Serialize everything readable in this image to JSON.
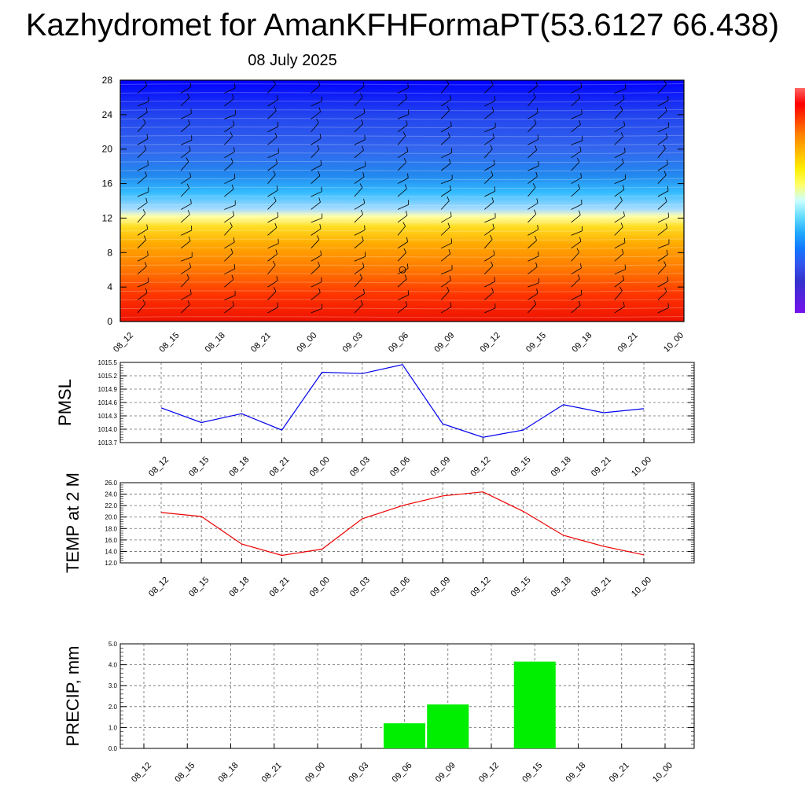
{
  "page": {
    "title": "Kazhydromet for AmanKFHFormaPT(53.6127 66.438)",
    "subtitle": "08 July 2025"
  },
  "colors": {
    "pmsl_line": "#0000ee",
    "temp_line": "#ee0000",
    "precip_bar": "#00ee00",
    "barb": "#000000"
  },
  "chart_data": [
    {
      "type": "heatmap",
      "title": "",
      "categories": [
        "08_12",
        "08_15",
        "08_18",
        "08_21",
        "09_00",
        "09_03",
        "09_06",
        "09_09",
        "09_12",
        "09_15",
        "09_18",
        "09_21",
        "10_00"
      ],
      "xlabel": "",
      "ylabel": "",
      "ylim": [
        0,
        28
      ],
      "yticks": [
        "0",
        "4",
        "8",
        "12",
        "16",
        "20",
        "24",
        "28"
      ],
      "ytick_values": [
        0,
        4,
        8,
        12,
        16,
        20,
        24,
        28
      ],
      "color_bands": [
        {
          "y": 0,
          "color": "#ee1100"
        },
        {
          "y": 3,
          "color": "#ff3300"
        },
        {
          "y": 6,
          "color": "#ff7700"
        },
        {
          "y": 9,
          "color": "#ffaa00"
        },
        {
          "y": 11,
          "color": "#ffdd22"
        },
        {
          "y": 12.2,
          "color": "#ffffaa"
        },
        {
          "y": 13,
          "color": "#aaddff"
        },
        {
          "y": 15,
          "color": "#33bbff"
        },
        {
          "y": 17,
          "color": "#2288ee"
        },
        {
          "y": 20,
          "color": "#3366ee"
        },
        {
          "y": 24,
          "color": "#2244ee"
        },
        {
          "y": 28,
          "color": "#0000ff"
        }
      ],
      "colorbar": [
        "#ff6666",
        "#ff0000",
        "#ff4400",
        "#ff8800",
        "#ffbb00",
        "#ffee00",
        "#ffff66",
        "#ccffff",
        "#66ddff",
        "#22aaff",
        "#1177ff",
        "#3355ee",
        "#3333cc",
        "#5522dd",
        "#7711ee"
      ],
      "barb_levels": [
        1,
        2.5,
        4,
        5.5,
        7,
        8.5,
        10,
        11.5,
        13,
        14.5,
        16,
        17.5,
        19,
        20.5,
        22,
        23.5,
        25,
        26.5
      ]
    },
    {
      "type": "line",
      "title": "",
      "categories": [
        "08_12",
        "08_15",
        "08_18",
        "08_21",
        "09_00",
        "09_03",
        "09_06",
        "09_09",
        "09_12",
        "09_15",
        "09_18",
        "09_21",
        "10_00"
      ],
      "series": [
        {
          "values": [
            1014.48,
            1014.15,
            1014.35,
            1013.98,
            1015.28,
            1015.25,
            1015.45,
            1014.12,
            1013.82,
            1013.98,
            1014.55,
            1014.37,
            1014.46
          ]
        }
      ],
      "xlabel": "",
      "ylabel": "PMSL",
      "ylim": [
        1013.7,
        1015.5
      ],
      "yticks": [
        "1013.7",
        "1014.0",
        "1014.3",
        "1014.6",
        "1014.9",
        "1015.2",
        "1015.5"
      ],
      "ytick_values": [
        1013.7,
        1014.0,
        1014.3,
        1014.6,
        1014.9,
        1015.2,
        1015.5
      ]
    },
    {
      "type": "line",
      "title": "",
      "categories": [
        "08_12",
        "08_15",
        "08_18",
        "08_21",
        "09_00",
        "09_03",
        "09_06",
        "09_09",
        "09_12",
        "09_15",
        "09_18",
        "09_21",
        "10_00"
      ],
      "series": [
        {
          "values": [
            20.8,
            20.1,
            15.3,
            13.3,
            14.4,
            19.7,
            22.0,
            23.7,
            24.4,
            21.0,
            16.8,
            14.9,
            13.4
          ]
        }
      ],
      "xlabel": "",
      "ylabel": "TEMP at 2 M",
      "ylim": [
        12.0,
        26.0
      ],
      "yticks": [
        "12.0",
        "14.0",
        "16.0",
        "18.0",
        "20.0",
        "22.0",
        "24.0",
        "26.0"
      ],
      "ytick_values": [
        12,
        14,
        16,
        18,
        20,
        22,
        24,
        26
      ]
    },
    {
      "type": "bar",
      "title": "",
      "categories": [
        "08_12",
        "08_15",
        "08_18",
        "08_21",
        "09_00",
        "09_03",
        "09_06",
        "09_09",
        "09_12",
        "09_15",
        "09_18",
        "09_21",
        "10_00"
      ],
      "values": [
        0,
        0,
        0,
        0,
        0,
        0,
        1.2,
        2.1,
        0,
        4.15,
        0,
        0,
        0
      ],
      "xlabel": "",
      "ylabel": "PRECIP, mm",
      "ylim": [
        0.0,
        5.0
      ],
      "yticks": [
        "0.0",
        "1.0",
        "2.0",
        "3.0",
        "4.0",
        "5.0"
      ],
      "ytick_values": [
        0,
        1,
        2,
        3,
        4,
        5
      ]
    }
  ]
}
